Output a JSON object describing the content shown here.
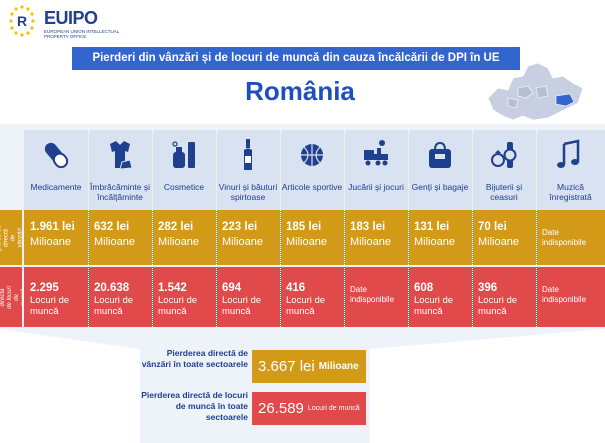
{
  "logo": {
    "word_eu": "EU",
    "word_ipo": "IPO",
    "sub": "European Union Intellectual Property Office"
  },
  "banner": "Pierderi din vânzări și de locuri de muncă din cauza încălcării de DPI în UE",
  "country": "România",
  "row_labels": {
    "sales": "pierderea directă de vânzări",
    "jobs": "pierderea directă de locuri de muncă"
  },
  "categories": [
    {
      "label": "Medicamente",
      "icon": "pill-icon",
      "sales_value": "1.961 lei",
      "sales_unit": "Milioane",
      "jobs_value": "2.295",
      "jobs_unit": "Locuri de muncă"
    },
    {
      "label": "Îmbrăcăminte și încălțăminte",
      "icon": "clothing-icon",
      "sales_value": "632 lei",
      "sales_unit": "Milioane",
      "jobs_value": "20.638",
      "jobs_unit": "Locuri de muncă"
    },
    {
      "label": "Cosmetice",
      "icon": "perfume-icon",
      "sales_value": "282 lei",
      "sales_unit": "Milioane",
      "jobs_value": "1.542",
      "jobs_unit": "Locuri de muncă"
    },
    {
      "label": "Vinuri și băuturi spirtoase",
      "icon": "bottle-icon",
      "sales_value": "223 lei",
      "sales_unit": "Milioane",
      "jobs_value": "694",
      "jobs_unit": "Locuri de muncă"
    },
    {
      "label": "Articole sportive",
      "icon": "ball-icon",
      "sales_value": "185 lei",
      "sales_unit": "Milioane",
      "jobs_value": "416",
      "jobs_unit": "Locuri de muncă"
    },
    {
      "label": "Jucării și jocuri",
      "icon": "toy-train-icon",
      "sales_value": "183 lei",
      "sales_unit": "Milioane",
      "jobs_value": "Date indisponibile",
      "jobs_unit": ""
    },
    {
      "label": "Genți și bagaje",
      "icon": "bag-icon",
      "sales_value": "131 lei",
      "sales_unit": "Milioane",
      "jobs_value": "608",
      "jobs_unit": "Locuri de muncă"
    },
    {
      "label": "Bijuterii și ceasuri",
      "icon": "jewelry-icon",
      "sales_value": "70 lei",
      "sales_unit": "Milioane",
      "jobs_value": "396",
      "jobs_unit": "Locuri de muncă"
    },
    {
      "label": "Muzică înregistrată",
      "icon": "music-note-icon",
      "sales_value": "Date indisponibile",
      "sales_unit": "",
      "jobs_value": "Date indisponibile",
      "jobs_unit": ""
    }
  ],
  "totals": {
    "sales_label": "Pierderea directă de vânzări în toate sectoarele",
    "sales_value": "3.667 lei",
    "sales_unit": "Milioane",
    "jobs_label": "Pierderea directă de locuri de muncă în toate sectoarele",
    "jobs_value": "26.589",
    "jobs_unit": "Locuri de muncă"
  },
  "colors": {
    "banner": "#3366cc",
    "sales": "#d39a18",
    "jobs": "#e04a4a",
    "icon_bg": "#d8e2f1",
    "text_blue": "#1f3f8f"
  }
}
